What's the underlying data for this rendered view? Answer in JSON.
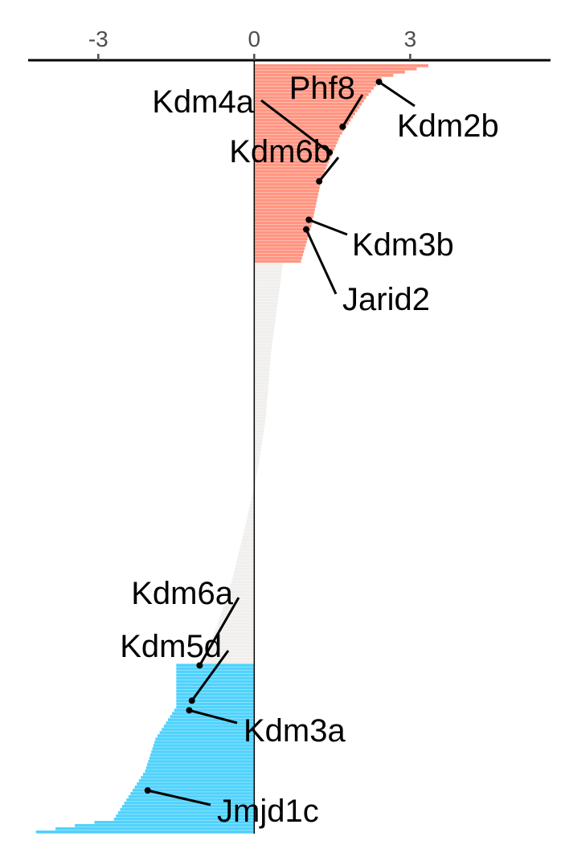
{
  "chart_data": {
    "type": "bar",
    "orientation": "horizontal",
    "sorted": "descending",
    "xlim": [
      -4.35,
      5.7
    ],
    "x_ticks": [
      -3,
      0,
      3
    ],
    "x_tick_labels": [
      "-3",
      "0",
      "3"
    ],
    "axis_position": "top",
    "grid": false,
    "legend": "none",
    "colors": {
      "up": "#ff9682",
      "neutral": "#f0efed",
      "down": "#4fd2fc"
    },
    "n_bars": 240,
    "groups": [
      {
        "category": "up",
        "count": 62
      },
      {
        "category": "neutral",
        "count": 125
      },
      {
        "category": "down",
        "count": 53
      }
    ],
    "value_profile": [
      [
        0,
        3.35
      ],
      [
        4,
        2.45
      ],
      [
        10,
        2.15
      ],
      [
        22,
        1.65
      ],
      [
        35,
        1.3
      ],
      [
        50,
        1.1
      ],
      [
        61,
        0.9
      ],
      [
        62,
        0.55
      ],
      [
        90,
        0.32
      ],
      [
        110,
        0.22
      ],
      [
        125,
        0.08
      ],
      [
        140,
        -0.12
      ],
      [
        160,
        -0.42
      ],
      [
        175,
        -0.72
      ],
      [
        186,
        -1.0
      ],
      [
        187,
        -1.5
      ],
      [
        200,
        -1.5
      ],
      [
        210,
        -1.9
      ],
      [
        220,
        -2.1
      ],
      [
        230,
        -2.5
      ],
      [
        235,
        -2.7
      ],
      [
        239,
        -4.2
      ]
    ],
    "labels": [
      {
        "gene": "Kdm2b",
        "x": 2.4,
        "y_bar": 5
      },
      {
        "gene": "Phf8",
        "x": 1.7,
        "y_bar": 19
      },
      {
        "gene": "Kdm4a",
        "x": 1.45,
        "y_bar": 27
      },
      {
        "gene": "Kdm6b",
        "x": 1.25,
        "y_bar": 36
      },
      {
        "gene": "Kdm3b",
        "x": 1.05,
        "y_bar": 48
      },
      {
        "gene": "Jarid2",
        "x": 1.0,
        "y_bar": 51
      },
      {
        "gene": "Kdm6a",
        "x": -1.05,
        "y_bar": 187
      },
      {
        "gene": "Kdm5d",
        "x": -1.2,
        "y_bar": 198
      },
      {
        "gene": "Kdm3a",
        "x": -1.25,
        "y_bar": 201
      },
      {
        "gene": "Jmjd1c",
        "x": -2.05,
        "y_bar": 226
      }
    ]
  }
}
